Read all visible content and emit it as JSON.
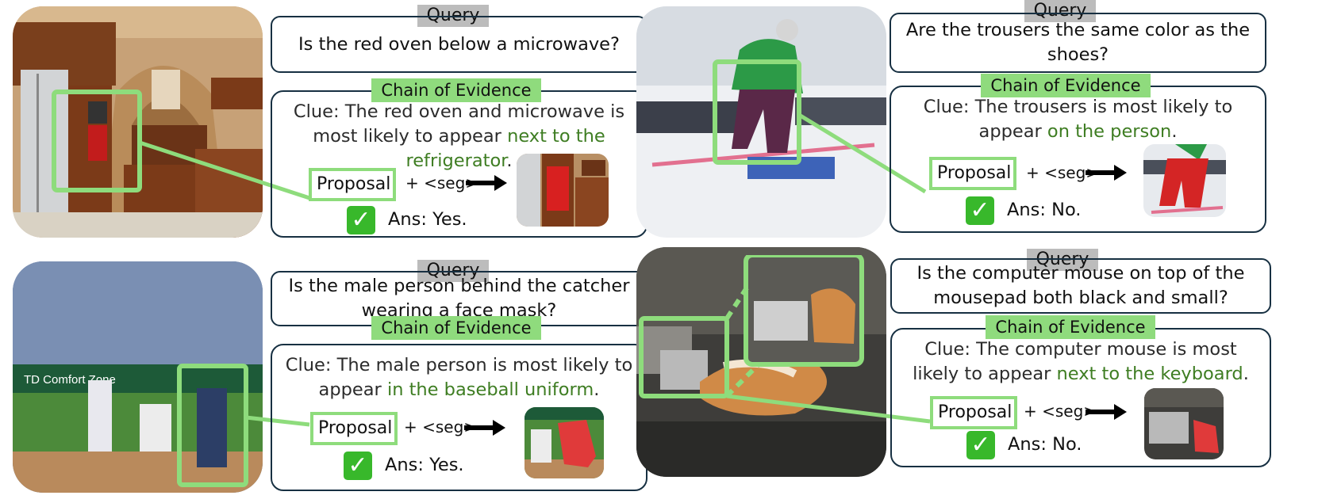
{
  "panels": [
    {
      "id": "kitchen",
      "query_label": "Query",
      "query": "Is the red oven below a microwave?",
      "chain_label": "Chain of Evidence",
      "clue_prefix": "Clue:",
      "clue_main": "The red oven and microwave is most likely to appear",
      "clue_highlight": "next to the refrigerator",
      "clue_end": ".",
      "proposal": "Proposal",
      "seg": "+ <seg>",
      "check": "✓",
      "answer": "Ans: Yes.",
      "photo_icon": "kitchen-photo",
      "thumb_icon": "segmented-oven-thumbnail"
    },
    {
      "id": "skier",
      "query_label": "Query",
      "query": "Are the trousers the same color as the shoes?",
      "chain_label": "Chain of Evidence",
      "clue_prefix": "Clue:",
      "clue_main": "The trousers is most likely to appear",
      "clue_highlight": "on the person",
      "clue_end": ".",
      "proposal": "Proposal",
      "seg": "+ <seg>",
      "check": "✓",
      "answer": "Ans: No.",
      "photo_icon": "skier-photo",
      "thumb_icon": "segmented-trousers-thumbnail"
    },
    {
      "id": "baseball",
      "query_label": "Query",
      "query": "Is the male person behind the catcher wearing a face mask?",
      "chain_label": "Chain of Evidence",
      "clue_prefix": "Clue:",
      "clue_main": "The male person is most likely to appear",
      "clue_highlight": "in the baseball uniform",
      "clue_end": ".",
      "proposal": "Proposal",
      "seg": "+ <seg>",
      "check": "✓",
      "answer": "Ans: Yes.",
      "photo_icon": "baseball-photo",
      "photo_text": "TD Comfort Zone",
      "thumb_icon": "segmented-catcher-thumbnail"
    },
    {
      "id": "desk",
      "query_label": "Query",
      "query": "Is the computer mouse on top of the mousepad both black and small?",
      "chain_label": "Chain of Evidence",
      "clue_prefix": "Clue:",
      "clue_main": "The computer mouse is most likely to appear",
      "clue_highlight": "next to the keyboard",
      "clue_end": ".",
      "proposal": "Proposal",
      "seg": "+ <seg>",
      "check": "✓",
      "answer": "Ans: No.",
      "photo_icon": "cat-desk-photo",
      "thumb_icon": "segmented-mouse-thumbnail"
    }
  ],
  "colors": {
    "box_border": "#173042",
    "highlight_green": "#8edc7c",
    "clue_green_text": "#3e7d22",
    "query_label_bg": "#bcbcbc",
    "check_green": "#38b82b"
  }
}
